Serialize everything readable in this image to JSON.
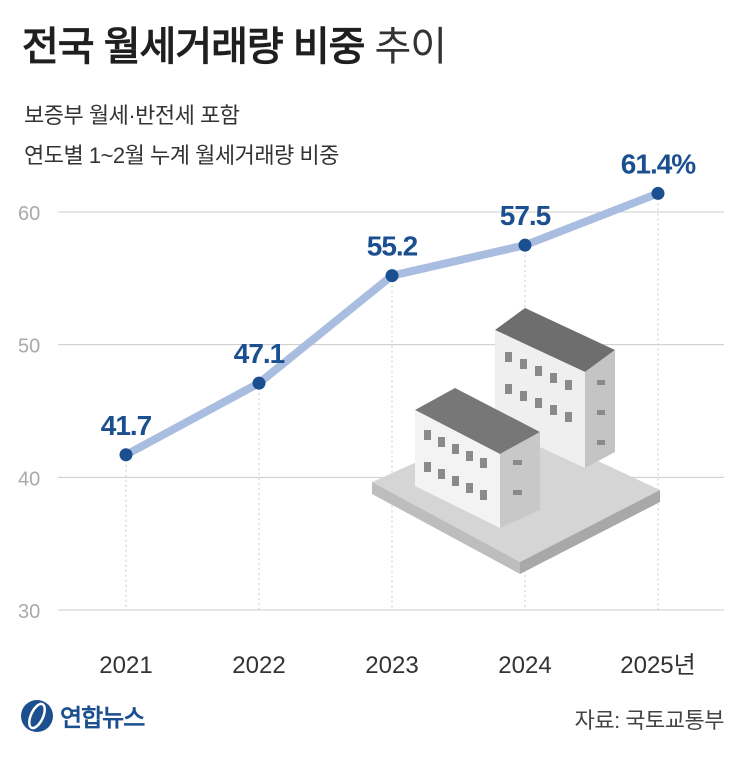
{
  "header": {
    "title_main": "전국 월세거래량 비중",
    "title_suffix": "추이",
    "subtitle_line1": "보증부 월세·반전세 포함",
    "subtitle_line2": "연도별 1~2월 누계 월세거래량 비중"
  },
  "chart_data": {
    "type": "line",
    "title": "전국 월세거래량 비중 추이",
    "categories": [
      "2021",
      "2022",
      "2023",
      "2024",
      "2025"
    ],
    "x_tick_labels": [
      "2021",
      "2022",
      "2023",
      "2024",
      "2025년"
    ],
    "values": [
      41.7,
      47.1,
      55.2,
      57.5,
      61.4
    ],
    "data_labels": [
      "41.7",
      "47.1",
      "55.2",
      "57.5",
      "61.4%"
    ],
    "y_ticks": [
      30,
      40,
      50,
      60
    ],
    "y_tick_labels": [
      "30",
      "40",
      "50",
      "60"
    ],
    "ylim": [
      30,
      62
    ],
    "unit": "%",
    "xlabel": "",
    "ylabel": "",
    "grid": true
  },
  "colors": {
    "line": "#a9bde0",
    "marker": "#1b4f8f",
    "label": "#1b4f8f",
    "grid": "#cccccc",
    "axis_text": "#aaaaaa",
    "tick_text": "#333333"
  },
  "footer": {
    "logo_text": "연합뉴스",
    "source": "자료: 국토교통부"
  }
}
